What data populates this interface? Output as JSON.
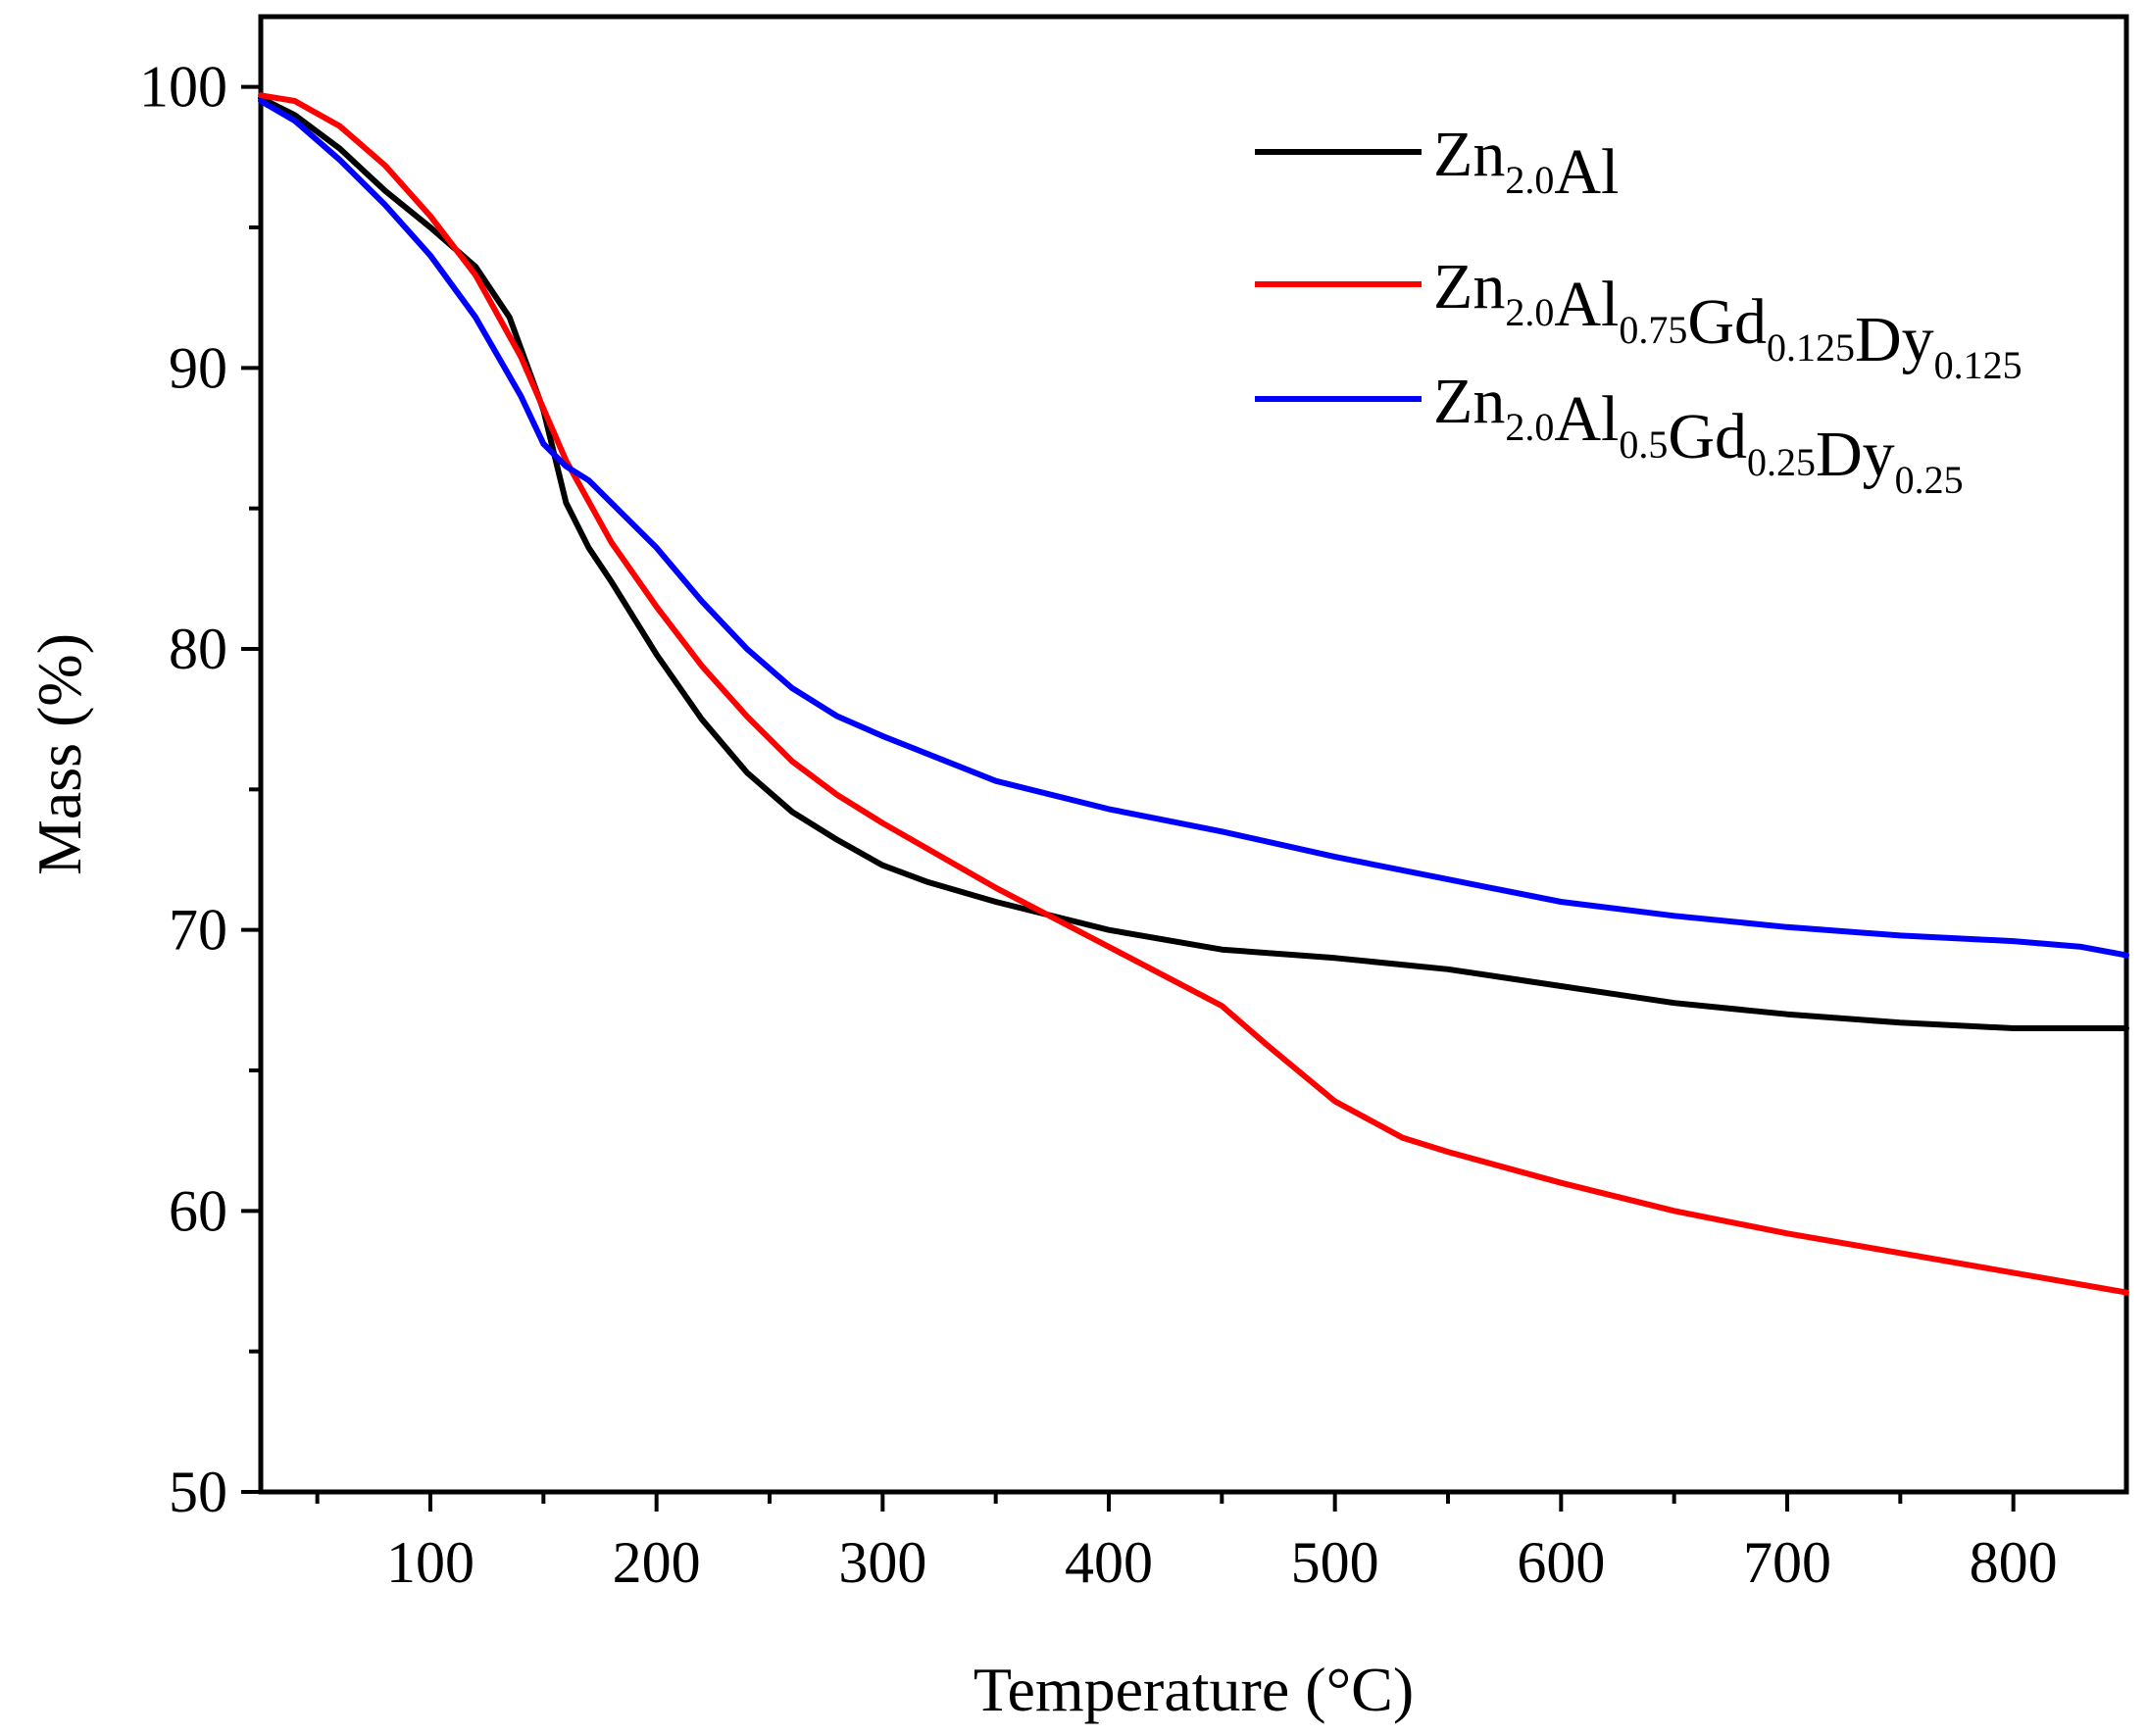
{
  "chart_data": {
    "type": "line",
    "title": "",
    "xlabel": "Temperature (°C)",
    "ylabel": "Mass (%)",
    "xlim": [
      25,
      850
    ],
    "ylim": [
      50,
      102.5
    ],
    "x_ticks": [
      100,
      200,
      300,
      400,
      500,
      600,
      700,
      800
    ],
    "x_tick_labels": [
      "100",
      "200",
      "300",
      "400",
      "500",
      "600",
      "700",
      "800"
    ],
    "x_minor_ticks": [
      50,
      150,
      250,
      350,
      450,
      550,
      650,
      750
    ],
    "y_ticks": [
      50,
      60,
      70,
      80,
      90,
      100
    ],
    "y_tick_labels": [
      "50",
      "60",
      "70",
      "80",
      "90",
      "100"
    ],
    "y_minor_ticks": [
      55,
      65,
      75,
      85,
      95
    ],
    "grid": false,
    "legend_position": "top-right",
    "series": [
      {
        "name": "Zn2.0Al",
        "legend": [
          {
            "text": "Zn",
            "sub": "2.0"
          },
          {
            "text": "Al",
            "sub": ""
          }
        ],
        "color": "#000000",
        "x": [
          25,
          40,
          60,
          80,
          100,
          120,
          135,
          150,
          160,
          170,
          180,
          200,
          220,
          240,
          260,
          280,
          300,
          320,
          350,
          400,
          450,
          500,
          550,
          600,
          650,
          700,
          750,
          800,
          850
        ],
        "y": [
          99.6,
          99.0,
          97.8,
          96.3,
          95.0,
          93.6,
          91.8,
          88.5,
          85.2,
          83.6,
          82.4,
          79.8,
          77.5,
          75.6,
          74.2,
          73.2,
          72.3,
          71.7,
          71.0,
          70.0,
          69.3,
          69.0,
          68.6,
          68.0,
          67.4,
          67.0,
          66.7,
          66.5,
          66.5
        ]
      },
      {
        "name": "Zn2.0Al0.75Gd0.125Dy0.125",
        "legend": [
          {
            "text": "Zn",
            "sub": "2.0"
          },
          {
            "text": "Al",
            "sub": "0.75"
          },
          {
            "text": "Gd",
            "sub": "0.125"
          },
          {
            "text": "Dy",
            "sub": "0.125"
          }
        ],
        "color": "#ff0000",
        "x": [
          25,
          40,
          60,
          80,
          100,
          120,
          140,
          160,
          180,
          200,
          220,
          240,
          260,
          280,
          300,
          350,
          400,
          450,
          470,
          500,
          530,
          550,
          600,
          650,
          700,
          750,
          800,
          850
        ],
        "y": [
          99.7,
          99.5,
          98.6,
          97.2,
          95.4,
          93.3,
          90.4,
          86.7,
          83.8,
          81.5,
          79.4,
          77.6,
          76.0,
          74.8,
          73.8,
          71.5,
          69.4,
          67.3,
          65.9,
          63.9,
          62.6,
          62.1,
          61.0,
          60.0,
          59.2,
          58.5,
          57.8,
          57.1
        ]
      },
      {
        "name": "Zn2.0Al0.5Gd0.25Dy0.25",
        "legend": [
          {
            "text": "Zn",
            "sub": "2.0"
          },
          {
            "text": "Al",
            "sub": "0.5"
          },
          {
            "text": "Gd",
            "sub": "0.25"
          },
          {
            "text": "Dy",
            "sub": "0.25"
          }
        ],
        "color": "#0000ff",
        "x": [
          25,
          40,
          60,
          80,
          100,
          120,
          140,
          150,
          160,
          170,
          180,
          200,
          220,
          240,
          260,
          280,
          300,
          350,
          400,
          450,
          500,
          550,
          600,
          650,
          700,
          750,
          800,
          830,
          850
        ],
        "y": [
          99.5,
          98.8,
          97.4,
          95.8,
          94.0,
          91.8,
          89.0,
          87.3,
          86.5,
          86.0,
          85.2,
          83.6,
          81.7,
          80.0,
          78.6,
          77.6,
          76.9,
          75.3,
          74.3,
          73.5,
          72.6,
          71.8,
          71.0,
          70.5,
          70.1,
          69.8,
          69.6,
          69.4,
          69.1
        ]
      }
    ]
  }
}
